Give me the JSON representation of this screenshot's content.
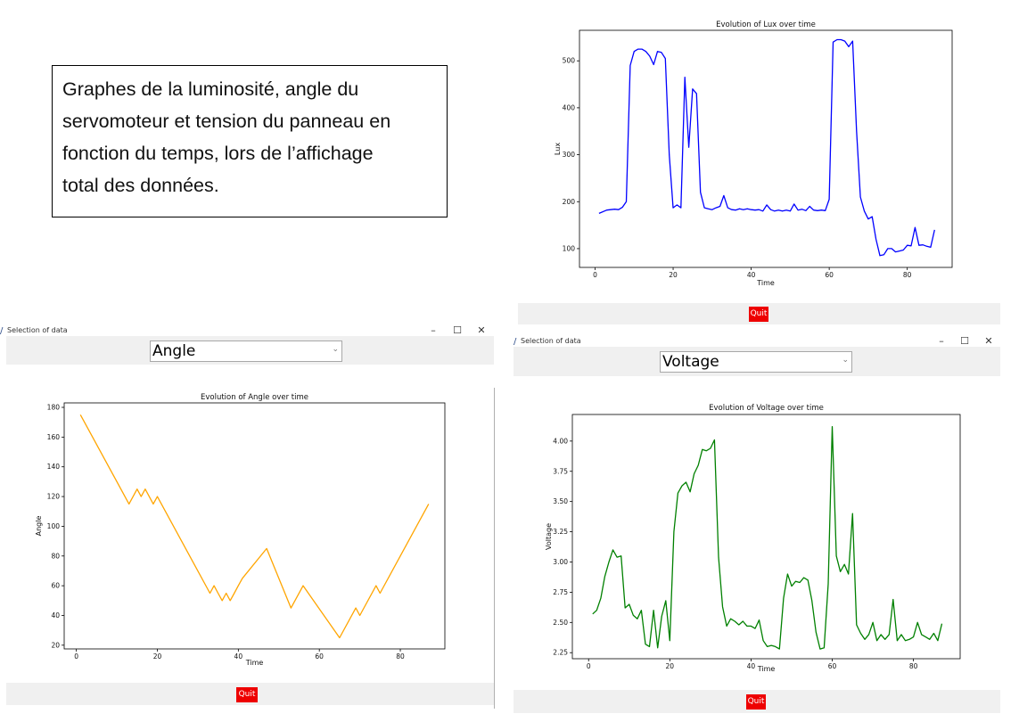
{
  "caption": {
    "lines": [
      "Graphes de la luminosité, angle du",
      "servomoteur et tension du panneau en",
      "fonction du temps, lors de l’affichage",
      "total des données."
    ]
  },
  "window_title": "Selection of data",
  "window_controls": {
    "minimize": "–",
    "maximize": "☐",
    "close": "✕"
  },
  "quit_label": "Quit",
  "combo_arrow": "⌄",
  "angle_window": {
    "selected": "Angle"
  },
  "voltage_window": {
    "selected": "Voltage"
  },
  "colors": {
    "lux": "#0000ff",
    "angle": "#ffa500",
    "voltage": "#008000",
    "quit": "#ee0000",
    "panel": "#f0f0f0"
  },
  "chart_data": [
    {
      "id": "lux",
      "type": "line",
      "title": "Evolution of Lux over time",
      "xlabel": "Time",
      "ylabel": "Lux",
      "xlim": [
        -4,
        91.5
      ],
      "ylim": [
        60,
        565
      ],
      "xticks": [
        0,
        20,
        40,
        60,
        80
      ],
      "yticks": [
        100,
        200,
        300,
        400,
        500
      ],
      "grid": false,
      "series": [
        {
          "x": [
            1,
            3,
            5,
            6,
            7,
            8,
            9,
            10,
            11,
            12,
            13,
            14,
            15,
            16,
            17,
            18,
            19,
            20,
            21,
            22,
            23,
            24,
            25,
            26,
            27,
            28,
            29,
            30,
            31,
            32,
            33,
            34,
            35,
            36,
            37,
            38,
            39,
            40,
            41,
            42,
            43,
            44,
            45,
            46,
            47,
            48,
            49,
            50,
            51,
            52,
            53,
            54,
            55,
            56,
            57,
            58,
            59,
            60,
            61,
            62,
            63,
            64,
            65,
            66,
            67,
            68,
            69,
            70,
            71,
            72,
            73,
            74,
            75,
            76,
            77,
            78,
            79,
            80,
            81,
            82,
            83,
            84,
            85,
            86,
            87
          ],
          "y": [
            175,
            182,
            184,
            183,
            188,
            200,
            490,
            520,
            525,
            525,
            520,
            510,
            492,
            520,
            518,
            505,
            300,
            187,
            193,
            187,
            465,
            316,
            440,
            430,
            220,
            187,
            185,
            183,
            187,
            190,
            213,
            187,
            183,
            182,
            185,
            183,
            185,
            183,
            182,
            183,
            180,
            193,
            183,
            180,
            182,
            180,
            182,
            180,
            195,
            182,
            184,
            181,
            190,
            182,
            181,
            182,
            181,
            205,
            540,
            545,
            545,
            542,
            530,
            542,
            350,
            210,
            180,
            163,
            168,
            120,
            85,
            87,
            100,
            100,
            93,
            95,
            97,
            107,
            106,
            145,
            107,
            108,
            105,
            103,
            140
          ]
        }
      ]
    },
    {
      "id": "angle",
      "type": "line",
      "title": "Evolution of Angle over time",
      "xlabel": "Time",
      "ylabel": "Angle",
      "xlim": [
        -3,
        91
      ],
      "ylim": [
        17.5,
        183
      ],
      "xticks": [
        0,
        20,
        40,
        60,
        80
      ],
      "yticks": [
        20,
        40,
        60,
        80,
        100,
        120,
        140,
        160,
        180
      ],
      "grid": false,
      "series": [
        {
          "x": [
            1,
            13,
            15,
            16,
            17,
            18,
            19,
            20,
            33,
            34,
            35,
            36,
            37,
            38,
            39,
            40,
            41,
            47,
            53,
            56,
            65,
            69,
            70,
            74,
            75,
            87
          ],
          "y": [
            175,
            115,
            125,
            120,
            125,
            120,
            115,
            120,
            55,
            60,
            55,
            50,
            55,
            50,
            55,
            60,
            65,
            85,
            45,
            60,
            25,
            45,
            40,
            60,
            55,
            115
          ]
        }
      ]
    },
    {
      "id": "voltage",
      "type": "line",
      "title": "Evolution of Voltage over time",
      "xlabel": "Time",
      "ylabel": "Voltage",
      "xlim": [
        -4,
        91.5
      ],
      "ylim": [
        2.2,
        4.22
      ],
      "xticks": [
        0,
        20,
        40,
        60,
        80
      ],
      "yticks": [
        2.25,
        2.5,
        2.75,
        3.0,
        3.25,
        3.5,
        3.75,
        4.0
      ],
      "grid": false,
      "series": [
        {
          "x": [
            1,
            2,
            3,
            4,
            5,
            6,
            7,
            8,
            9,
            10,
            11,
            12,
            13,
            14,
            15,
            16,
            17,
            18,
            19,
            20,
            21,
            22,
            23,
            24,
            25,
            26,
            27,
            28,
            29,
            30,
            31,
            32,
            33,
            34,
            35,
            36,
            37,
            38,
            39,
            40,
            41,
            42,
            43,
            44,
            45,
            46,
            47,
            48,
            49,
            50,
            51,
            52,
            53,
            54,
            55,
            56,
            57,
            58,
            59,
            60,
            61,
            62,
            63,
            64,
            65,
            66,
            67,
            68,
            69,
            70,
            71,
            72,
            73,
            74,
            75,
            76,
            77,
            78,
            79,
            80,
            81,
            82,
            83,
            84,
            85,
            86,
            87
          ],
          "y": [
            2.57,
            2.6,
            2.7,
            2.88,
            3.0,
            3.1,
            3.04,
            3.05,
            2.62,
            2.65,
            2.56,
            2.53,
            2.6,
            2.32,
            2.3,
            2.6,
            2.29,
            2.55,
            2.68,
            2.35,
            3.25,
            3.57,
            3.63,
            3.66,
            3.58,
            3.73,
            3.8,
            3.93,
            3.92,
            3.94,
            4.01,
            3.04,
            2.63,
            2.47,
            2.53,
            2.51,
            2.48,
            2.51,
            2.47,
            2.47,
            2.45,
            2.52,
            2.35,
            2.3,
            2.31,
            2.3,
            2.28,
            2.7,
            2.9,
            2.8,
            2.84,
            2.83,
            2.87,
            2.85,
            2.68,
            2.42,
            2.28,
            2.29,
            2.82,
            4.12,
            3.05,
            2.92,
            2.98,
            2.9,
            3.4,
            2.48,
            2.41,
            2.36,
            2.4,
            2.5,
            2.35,
            2.4,
            2.36,
            2.4,
            2.69,
            2.35,
            2.4,
            2.35,
            2.36,
            2.38,
            2.5,
            2.4,
            2.38,
            2.36,
            2.41,
            2.35,
            2.49
          ]
        }
      ]
    }
  ]
}
